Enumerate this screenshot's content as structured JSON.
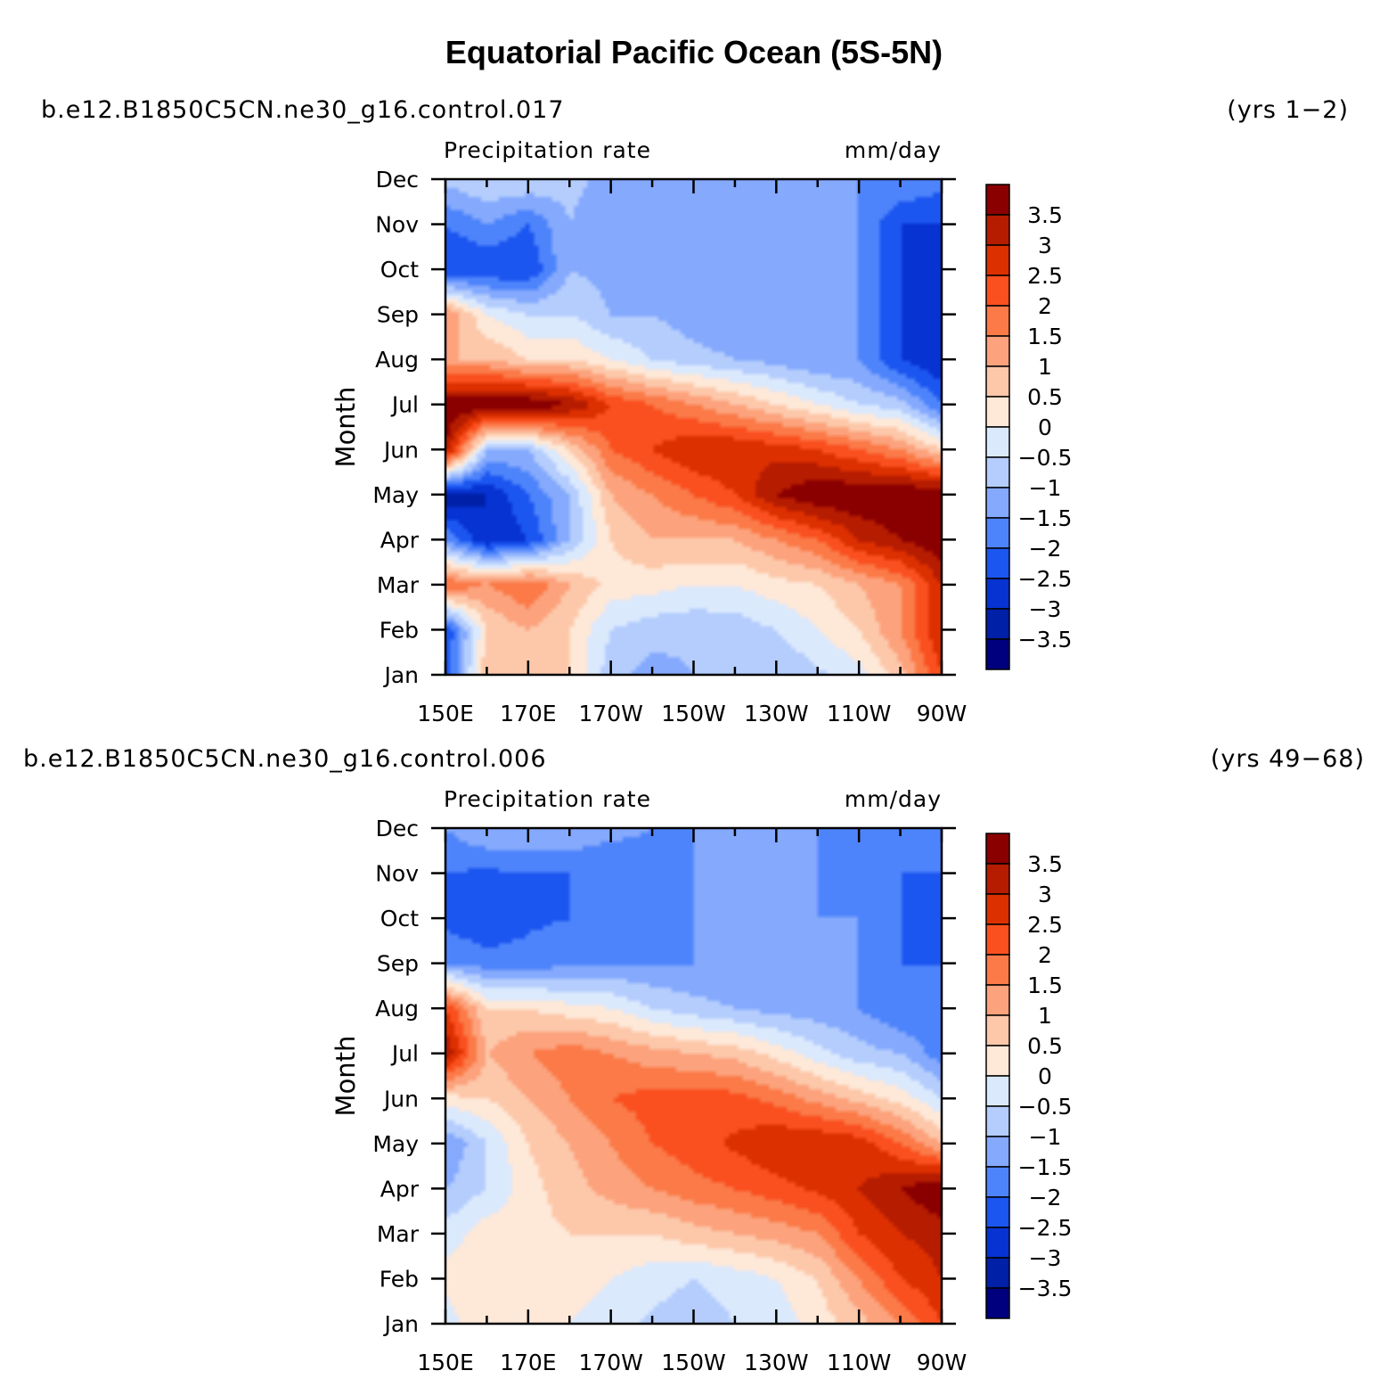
{
  "title": "Equatorial Pacific Ocean (5S-5N)",
  "chart_data": [
    {
      "type": "heatmap",
      "case": "b.e12.B1850C5CN.ne30_g16.control.017",
      "years": "(yrs  1−2)",
      "variable": "Precipitation  rate",
      "units": "mm/day",
      "ylabel": "Month",
      "xlabel": "",
      "x_ticks": [
        "150E",
        "170E",
        "170W",
        "150W",
        "130W",
        "110W",
        "90W"
      ],
      "x_values": [
        150,
        170,
        190,
        210,
        230,
        250,
        270
      ],
      "xlim": [
        150,
        270
      ],
      "y_ticks": [
        "Jan",
        "Feb",
        "Mar",
        "Apr",
        "May",
        "Jun",
        "Jul",
        "Aug",
        "Sep",
        "Oct",
        "Nov",
        "Dec"
      ],
      "ylim": [
        1,
        12
      ],
      "levels": [
        -3.5,
        -3,
        -2.5,
        -2,
        -1.5,
        -1,
        -0.5,
        0,
        0.5,
        1,
        1.5,
        2,
        2.5,
        3,
        3.5
      ],
      "level_labels": [
        "3.5",
        "3",
        "2.5",
        "2",
        "1.5",
        "1",
        "0.5",
        "0",
        "−0.5",
        "−1",
        "−1.5",
        "−2",
        "−2.5",
        "−3",
        "−3.5"
      ],
      "colorbar_colors": [
        "#8a0000",
        "#b51c00",
        "#dd3000",
        "#fa5020",
        "#fb7a48",
        "#fca27c",
        "#fdc8aa",
        "#fee8d8",
        "#dbe9fd",
        "#b4cdfd",
        "#84a9fd",
        "#4e84fb",
        "#1c56f0",
        "#0633d2",
        "#0020a8",
        "#00007e"
      ],
      "grid_x": [
        150,
        160,
        170,
        180,
        190,
        200,
        210,
        220,
        230,
        240,
        250,
        260,
        270
      ],
      "values": [
        [
          -2.5,
          1.0,
          1.0,
          0.5,
          -0.8,
          -1.2,
          -1.0,
          -1.0,
          -1.0,
          -0.6,
          -0.2,
          0.8,
          2.5
        ],
        [
          -2.5,
          0.5,
          1.0,
          0.5,
          -0.5,
          -0.8,
          -0.9,
          -0.8,
          -0.5,
          0.0,
          0.5,
          1.5,
          3.0
        ],
        [
          2.0,
          1.5,
          2.0,
          1.0,
          0.3,
          0.2,
          0.0,
          0.0,
          0.3,
          0.5,
          1.0,
          1.5,
          3.0
        ],
        [
          -1.5,
          -3.0,
          -2.5,
          -1.0,
          0.5,
          1.0,
          1.0,
          1.0,
          1.5,
          2.0,
          3.0,
          3.5,
          4.0
        ],
        [
          -3.5,
          -3.0,
          -2.0,
          -1.0,
          1.0,
          1.5,
          2.0,
          2.5,
          3.5,
          4.0,
          4.0,
          4.0,
          4.0
        ],
        [
          3.5,
          -1.0,
          -1.0,
          0.5,
          2.0,
          2.5,
          3.0,
          3.0,
          2.8,
          2.5,
          2.0,
          1.5,
          0.5
        ],
        [
          4.0,
          4.0,
          4.0,
          3.5,
          2.5,
          2.0,
          1.5,
          1.0,
          0.5,
          0.0,
          -0.5,
          -0.8,
          -2.0
        ],
        [
          1.0,
          1.0,
          0.5,
          0.5,
          0.0,
          -0.5,
          -0.8,
          -1.0,
          -1.2,
          -1.5,
          -1.5,
          -2.5,
          -3.0
        ],
        [
          1.5,
          0.0,
          -0.5,
          -0.5,
          -1.0,
          -1.0,
          -1.3,
          -1.5,
          -1.5,
          -1.5,
          -1.5,
          -2.5,
          -3.0
        ],
        [
          -2.5,
          -2.5,
          -2.5,
          -1.0,
          -1.2,
          -1.5,
          -1.5,
          -1.5,
          -1.5,
          -1.5,
          -1.5,
          -2.5,
          -3.0
        ],
        [
          -2.0,
          -1.5,
          -2.0,
          -1.0,
          -1.5,
          -1.5,
          -1.5,
          -1.5,
          -1.5,
          -1.5,
          -1.5,
          -2.5,
          -2.5
        ],
        [
          -0.8,
          -0.5,
          -0.5,
          -0.8,
          -1.2,
          -1.3,
          -1.5,
          -1.5,
          -1.5,
          -1.5,
          -1.5,
          -1.5,
          -1.8
        ]
      ]
    },
    {
      "type": "heatmap",
      "case": "b.e12.B1850C5CN.ne30_g16.control.006",
      "years": "(yrs  49−68)",
      "variable": "Precipitation  rate",
      "units": "mm/day",
      "ylabel": "Month",
      "xlabel": "",
      "x_ticks": [
        "150E",
        "170E",
        "170W",
        "150W",
        "130W",
        "110W",
        "90W"
      ],
      "x_values": [
        150,
        170,
        190,
        210,
        230,
        250,
        270
      ],
      "xlim": [
        150,
        270
      ],
      "y_ticks": [
        "Jan",
        "Feb",
        "Mar",
        "Apr",
        "May",
        "Jun",
        "Jul",
        "Aug",
        "Sep",
        "Oct",
        "Nov",
        "Dec"
      ],
      "ylim": [
        1,
        12
      ],
      "levels": [
        -3.5,
        -3,
        -2.5,
        -2,
        -1.5,
        -1,
        -0.5,
        0,
        0.5,
        1,
        1.5,
        2,
        2.5,
        3,
        3.5
      ],
      "level_labels": [
        "3.5",
        "3",
        "2.5",
        "2",
        "1.5",
        "1",
        "0.5",
        "0",
        "−0.5",
        "−1",
        "−1.5",
        "−2",
        "−2.5",
        "−3",
        "−3.5"
      ],
      "colorbar_colors": [
        "#8a0000",
        "#b51c00",
        "#dd3000",
        "#fa5020",
        "#fb7a48",
        "#fca27c",
        "#fdc8aa",
        "#fee8d8",
        "#dbe9fd",
        "#b4cdfd",
        "#84a9fd",
        "#4e84fb",
        "#1c56f0",
        "#0633d2",
        "#0020a8",
        "#00007e"
      ],
      "grid_x": [
        150,
        160,
        170,
        180,
        190,
        200,
        210,
        220,
        230,
        240,
        250,
        260,
        270
      ],
      "values": [
        [
          -0.3,
          0.5,
          0.3,
          0.0,
          -0.3,
          -0.6,
          -0.8,
          -0.5,
          -0.3,
          0.2,
          0.8,
          1.5,
          2.5
        ],
        [
          0.2,
          0.5,
          0.3,
          0.3,
          0.0,
          -0.3,
          -0.5,
          -0.3,
          0.0,
          0.5,
          1.5,
          2.5,
          3.0
        ],
        [
          -0.3,
          0.3,
          0.3,
          0.5,
          0.5,
          0.5,
          0.8,
          1.0,
          1.2,
          1.5,
          2.5,
          3.0,
          3.2
        ],
        [
          -1.0,
          -0.5,
          0.3,
          0.8,
          1.2,
          1.5,
          1.8,
          2.0,
          2.3,
          2.6,
          3.0,
          3.5,
          4.0
        ],
        [
          -1.5,
          -0.5,
          0.5,
          1.0,
          1.5,
          2.0,
          2.3,
          2.6,
          3.0,
          3.0,
          2.8,
          2.0,
          1.0
        ],
        [
          0.3,
          0.5,
          1.0,
          1.5,
          2.0,
          2.2,
          2.3,
          2.2,
          1.8,
          1.3,
          0.8,
          0.3,
          -0.5
        ],
        [
          3.5,
          1.0,
          1.5,
          1.8,
          1.5,
          1.2,
          1.0,
          0.8,
          0.3,
          -0.3,
          -0.8,
          -1.0,
          -1.8
        ],
        [
          2.5,
          0.5,
          0.5,
          0.2,
          0.0,
          -0.5,
          -0.8,
          -1.0,
          -1.2,
          -1.3,
          -1.5,
          -2.0,
          -2.0
        ],
        [
          -1.5,
          -1.8,
          -1.8,
          -1.6,
          -1.5,
          -1.5,
          -1.5,
          -1.5,
          -1.5,
          -1.5,
          -1.5,
          -2.0,
          -2.0
        ],
        [
          -2.2,
          -2.4,
          -2.1,
          -2.0,
          -2.0,
          -1.8,
          -1.5,
          -1.5,
          -1.5,
          -1.5,
          -1.5,
          -2.0,
          -2.2
        ],
        [
          -2.0,
          -2.1,
          -2.0,
          -2.0,
          -2.0,
          -1.8,
          -1.5,
          -1.5,
          -1.5,
          -1.5,
          -1.8,
          -2.0,
          -2.0
        ],
        [
          -1.5,
          -1.0,
          -1.0,
          -1.0,
          -1.3,
          -1.5,
          -1.5,
          -1.5,
          -1.5,
          -1.5,
          -1.5,
          -1.5,
          -1.5
        ]
      ]
    }
  ]
}
